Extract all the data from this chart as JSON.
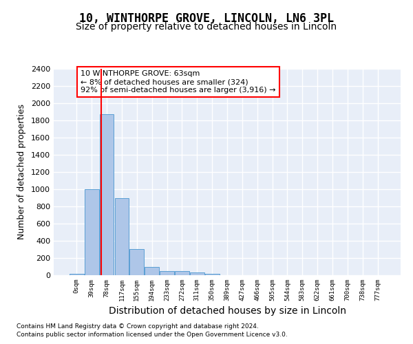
{
  "title": "10, WINTHORPE GROVE, LINCOLN, LN6 3PL",
  "subtitle": "Size of property relative to detached houses in Lincoln",
  "xlabel": "Distribution of detached houses by size in Lincoln",
  "ylabel": "Number of detached properties",
  "bar_color": "#aec6e8",
  "bar_edge_color": "#5a9fd4",
  "bar_values": [
    20,
    1000,
    1870,
    900,
    305,
    100,
    48,
    48,
    30,
    15,
    0,
    0,
    0,
    0,
    0,
    0,
    0,
    0,
    0,
    0,
    0
  ],
  "bar_labels": [
    "0sqm",
    "39sqm",
    "78sqm",
    "117sqm",
    "155sqm",
    "194sqm",
    "233sqm",
    "272sqm",
    "311sqm",
    "350sqm",
    "389sqm",
    "427sqm",
    "466sqm",
    "505sqm",
    "544sqm",
    "583sqm",
    "622sqm",
    "661sqm",
    "700sqm",
    "738sqm",
    "777sqm"
  ],
  "ylim": [
    0,
    2400
  ],
  "yticks": [
    0,
    200,
    400,
    600,
    800,
    1000,
    1200,
    1400,
    1600,
    1800,
    2000,
    2200,
    2400
  ],
  "annotation_text": "10 WINTHORPE GROVE: 63sqm\n← 8% of detached houses are smaller (324)\n92% of semi-detached houses are larger (3,916) →",
  "annotation_box_color": "white",
  "annotation_box_edge_color": "red",
  "vline_color": "red",
  "footnote1": "Contains HM Land Registry data © Crown copyright and database right 2024.",
  "footnote2": "Contains public sector information licensed under the Open Government Licence v3.0.",
  "background_color": "#e8eef8",
  "grid_color": "white",
  "title_fontsize": 12,
  "subtitle_fontsize": 10,
  "ylabel_fontsize": 9,
  "xlabel_fontsize": 10
}
